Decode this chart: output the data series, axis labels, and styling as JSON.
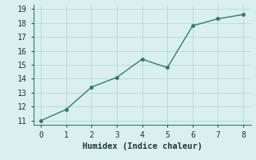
{
  "x": [
    0,
    1,
    2,
    3,
    4,
    5,
    6,
    7,
    8
  ],
  "y": [
    11.0,
    11.8,
    13.4,
    14.1,
    15.4,
    14.8,
    17.8,
    18.3,
    18.6
  ],
  "xlabel": "Humidex (Indice chaleur)",
  "xlim": [
    -0.3,
    8.3
  ],
  "ylim": [
    10.7,
    19.3
  ],
  "yticks": [
    11,
    12,
    13,
    14,
    15,
    16,
    17,
    18,
    19
  ],
  "xticks": [
    0,
    1,
    2,
    3,
    4,
    5,
    6,
    7,
    8
  ],
  "line_color": "#2e7d6e",
  "marker_color": "#2e7d6e",
  "bg_color": "#d9f0ee",
  "grid_color": "#b8d8d4",
  "spine_color": "#2e7d6e",
  "xlabel_fontsize": 7.5,
  "tick_fontsize": 7,
  "line_width": 1.0,
  "marker_size": 3
}
